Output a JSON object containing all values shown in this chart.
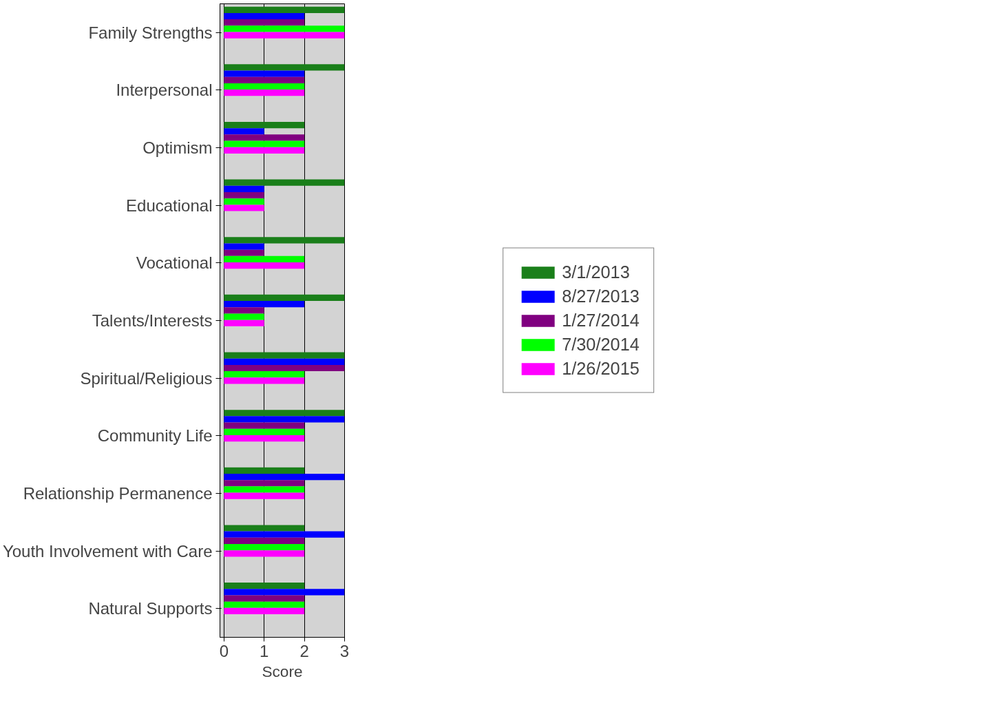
{
  "chart_data": {
    "type": "bar",
    "orientation": "horizontal",
    "xlabel": "Score",
    "categories": [
      "Family Strengths",
      "Interpersonal",
      "Optimism",
      "Educational",
      "Vocational",
      "Talents/Interests",
      "Spiritual/Religious",
      "Community Life",
      "Relationship Permanence",
      "Youth Involvement with Care",
      "Natural Supports"
    ],
    "series": [
      {
        "name": "3/1/2013",
        "color": "#1a7f1a",
        "values": [
          3,
          3,
          2,
          3,
          3,
          3,
          3,
          3,
          2,
          2,
          2
        ]
      },
      {
        "name": "8/27/2013",
        "color": "#0000ff",
        "values": [
          2,
          2,
          1,
          1,
          1,
          2,
          3,
          3,
          3,
          3,
          3
        ]
      },
      {
        "name": "1/27/2014",
        "color": "#800080",
        "values": [
          2,
          2,
          2,
          1,
          1,
          1,
          3,
          2,
          2,
          2,
          2
        ]
      },
      {
        "name": "7/30/2014",
        "color": "#00ff00",
        "values": [
          3,
          2,
          2,
          1,
          2,
          1,
          2,
          2,
          2,
          2,
          2
        ]
      },
      {
        "name": "1/26/2015",
        "color": "#ff00ff",
        "values": [
          3,
          2,
          2,
          1,
          2,
          1,
          2,
          2,
          2,
          2,
          2
        ]
      }
    ],
    "xlim": [
      -0.1,
      3
    ],
    "xticks": [
      0,
      1,
      2,
      3
    ],
    "grid": "x",
    "legend": "right"
  }
}
